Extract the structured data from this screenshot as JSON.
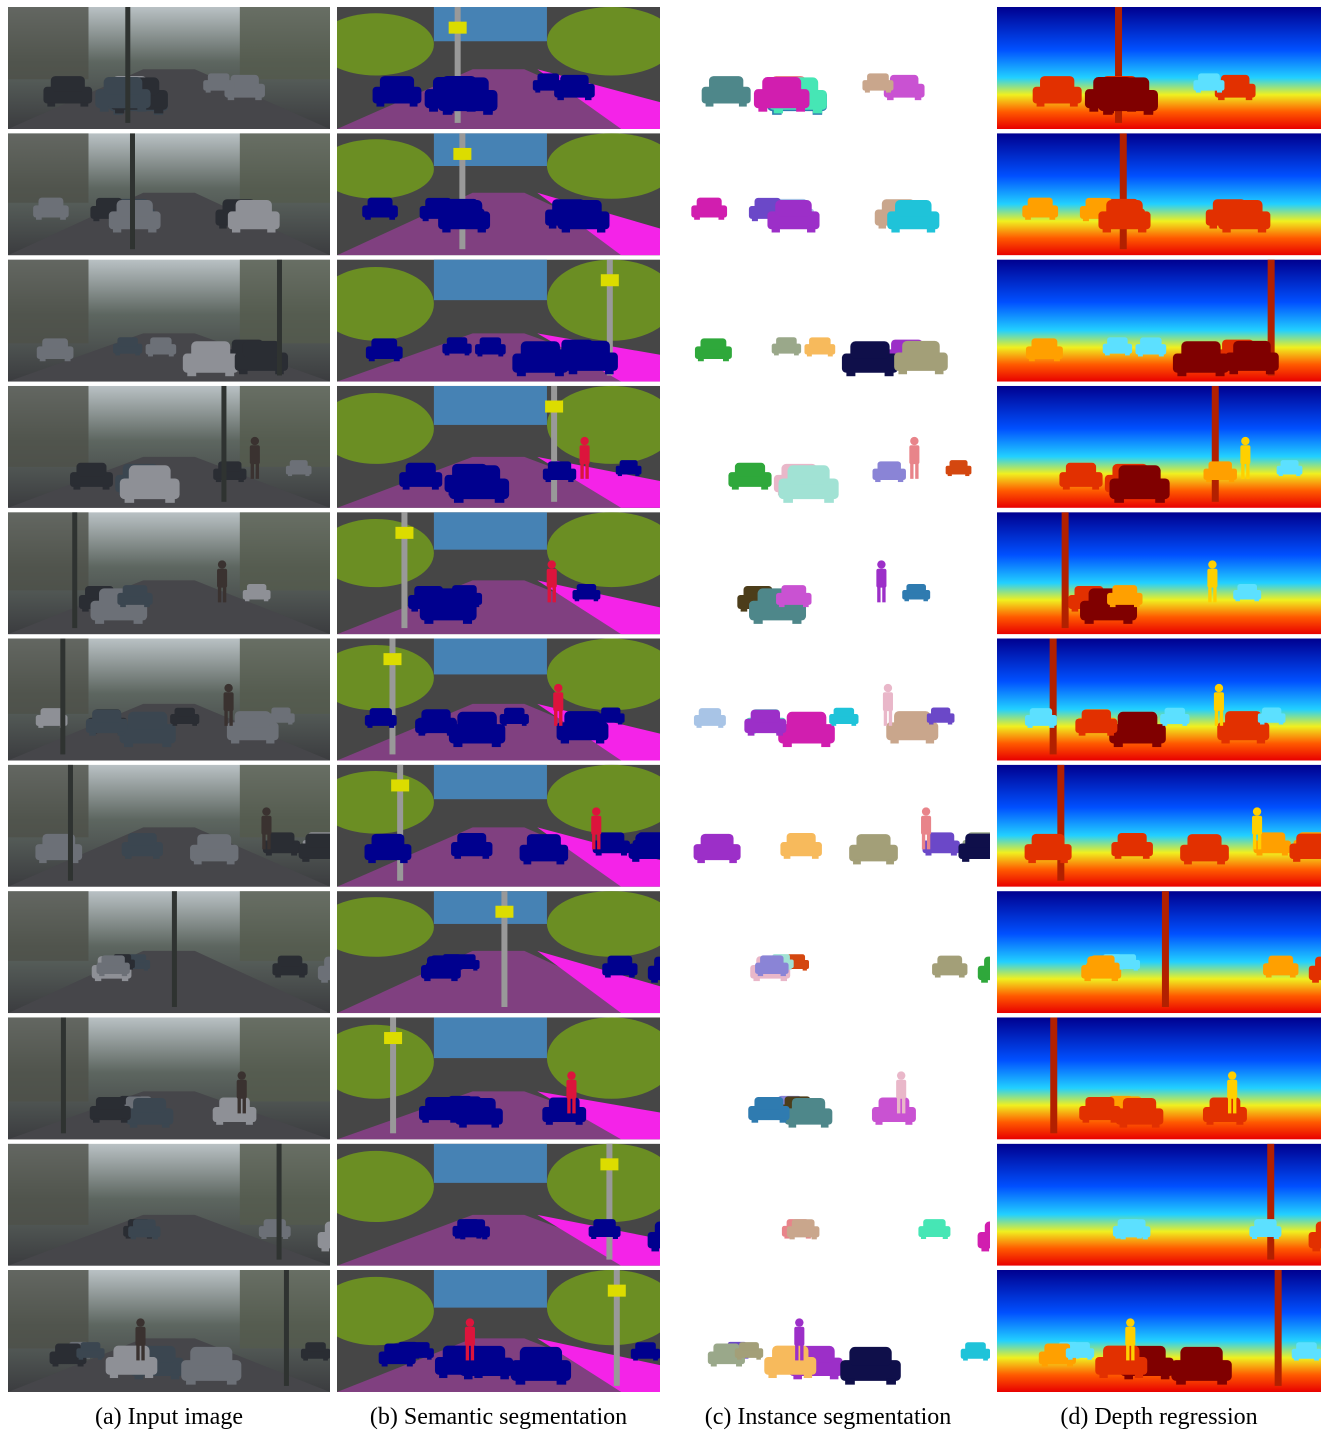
{
  "figure": {
    "captions": [
      "(a) Input image",
      "(b) Semantic segmentation",
      "(c) Instance segmentation",
      "(d) Depth regression"
    ],
    "columns": [
      {
        "kind": "input-photo"
      },
      {
        "kind": "semantic-segmentation"
      },
      {
        "kind": "instance-segmentation"
      },
      {
        "kind": "depth-map"
      }
    ],
    "row_count": 11
  },
  "palette": {
    "road": "#804080",
    "sidewalk": "#f423e8",
    "building": "#464646",
    "vegetation": "#6b8e23",
    "sky": "#4682b4",
    "car": "#00008e",
    "person": "#dc143c",
    "pole": "#999999",
    "traffic_sign": "#dcdc00",
    "terrain": "#98fb98",
    "traffic_light": "#faaa1e",
    "instance_background": "#ffffff",
    "depth_far": "#00008f",
    "depth_near": "#800000"
  }
}
